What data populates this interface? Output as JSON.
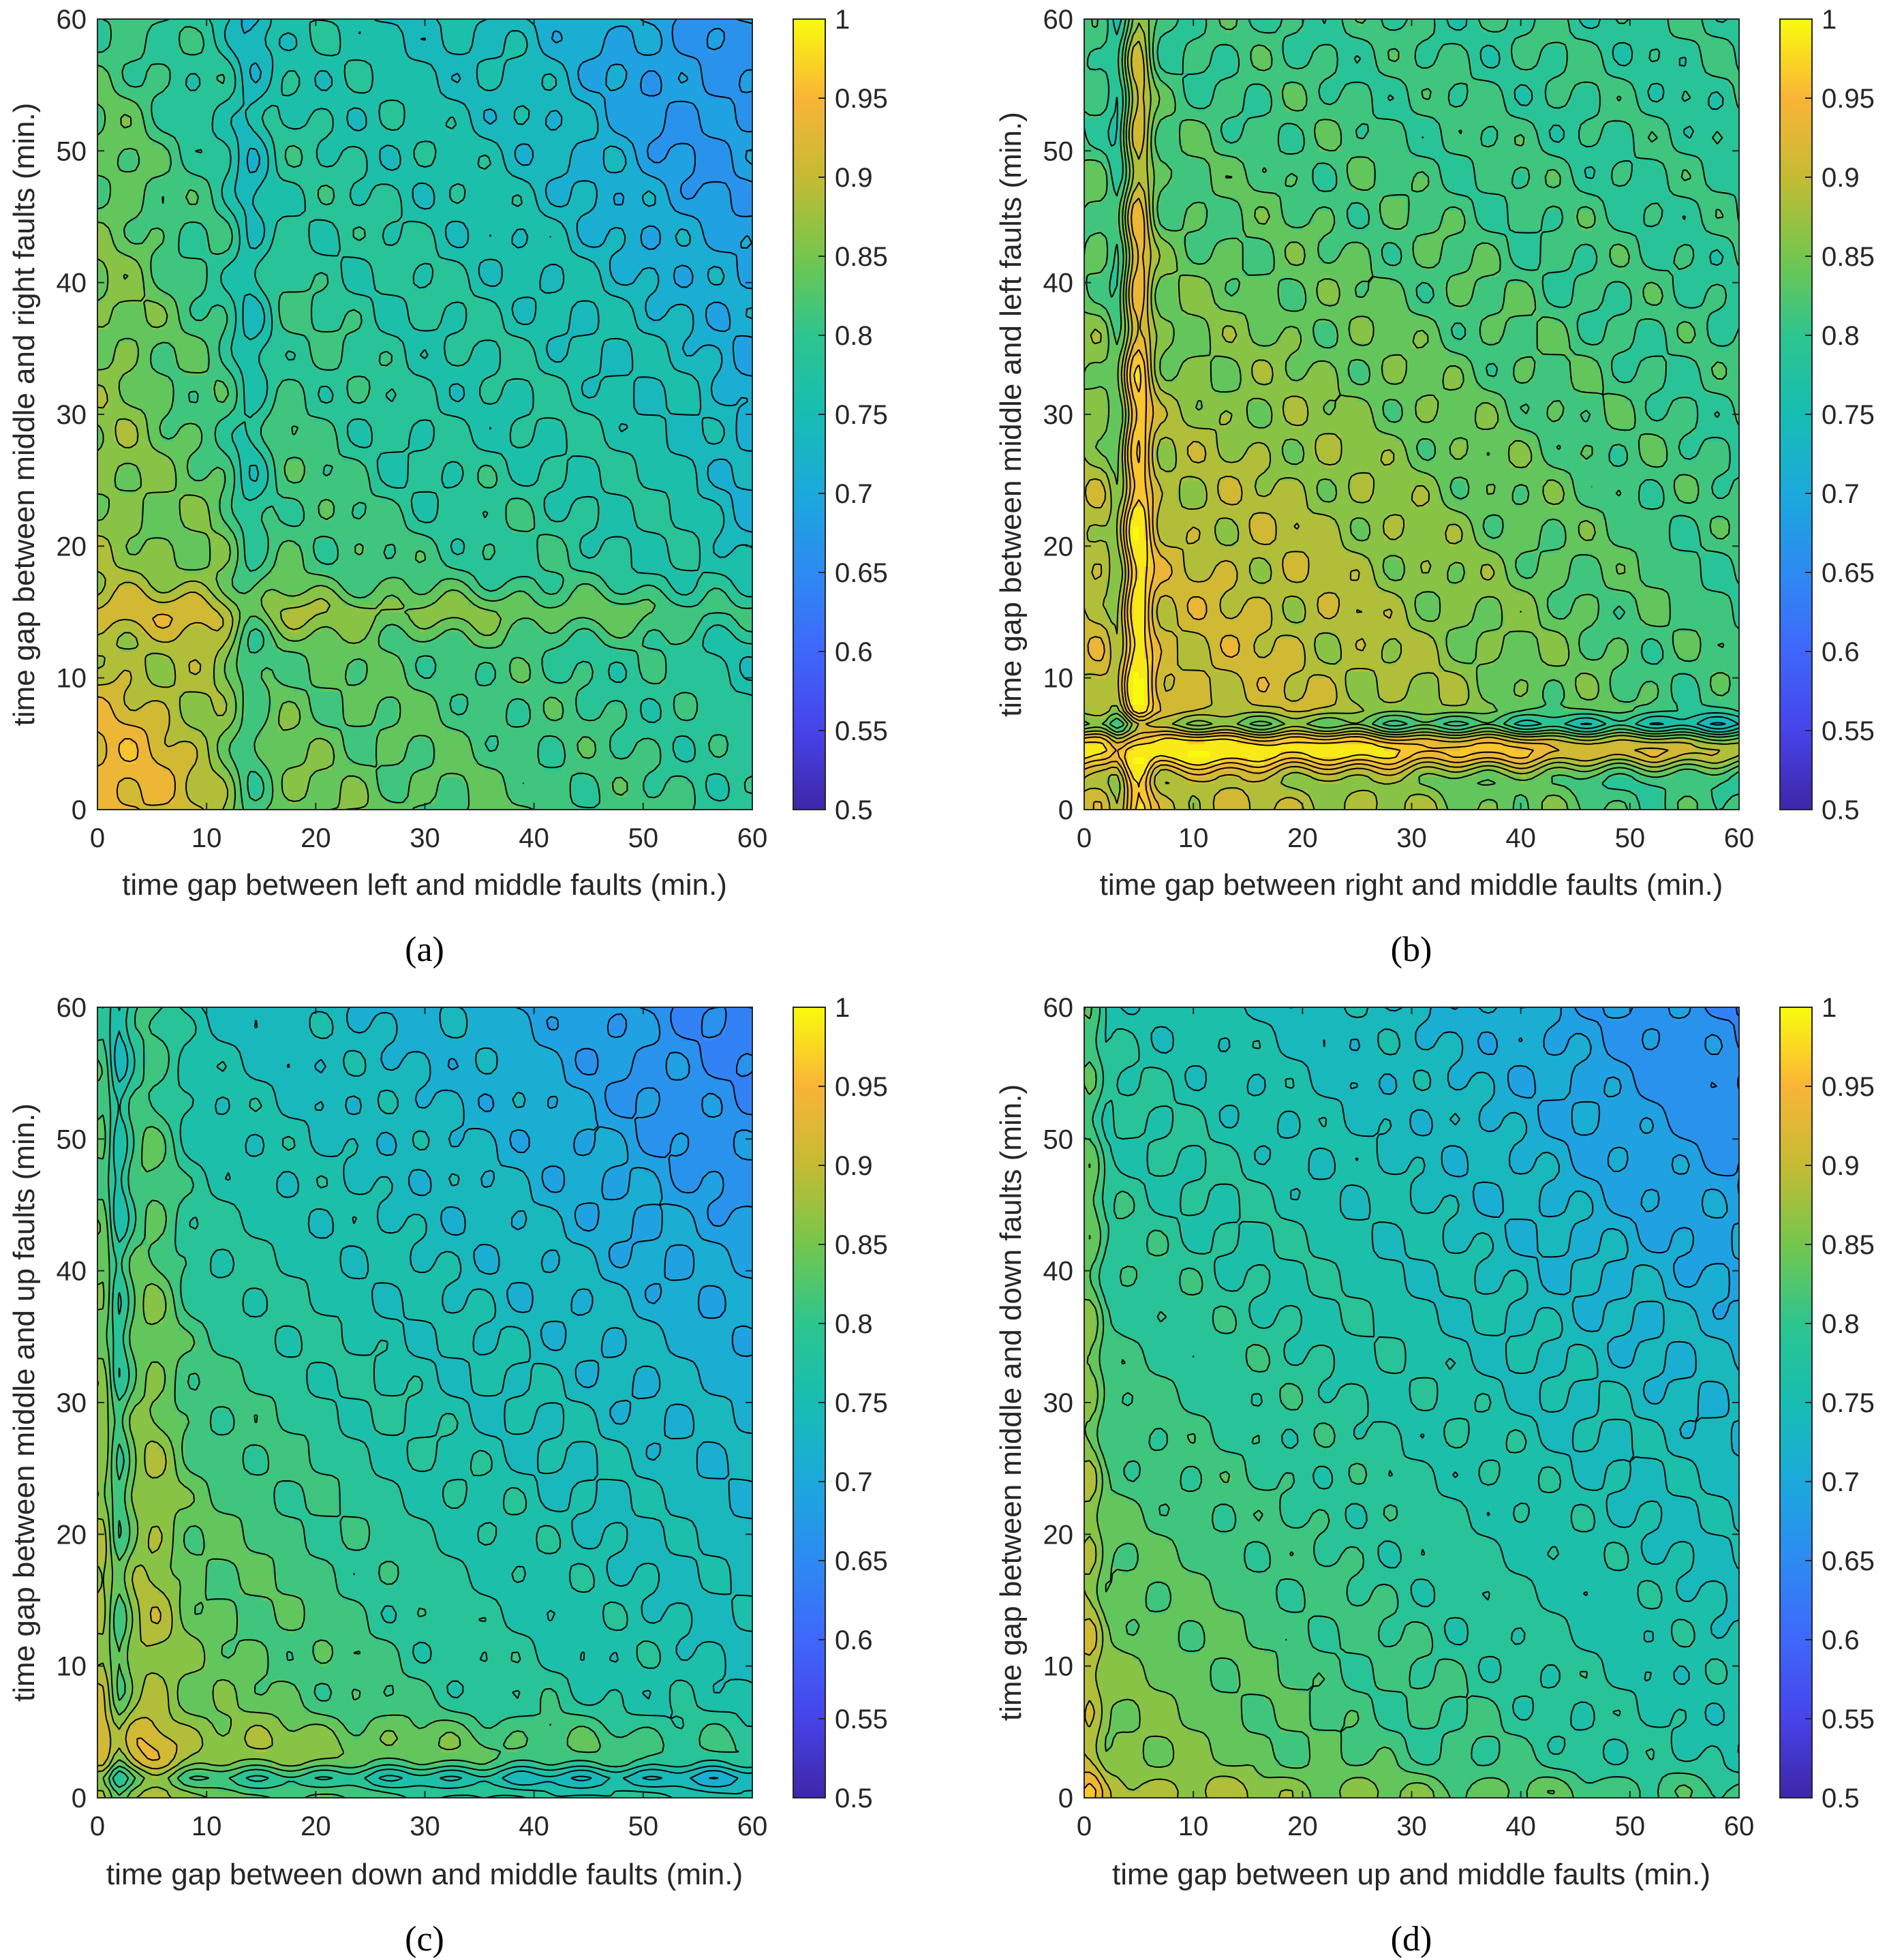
{
  "colors": {
    "colormap": "parula",
    "contour_line": "#000000",
    "axis": "#262626",
    "background": "#ffffff"
  },
  "chart_data": [
    {
      "type": "heatmap",
      "panel": "(a)",
      "xlabel": "time gap between left and middle faults (min.)",
      "ylabel": "time gap between middle and right faults (min.)",
      "xlim": [
        0,
        60
      ],
      "ylim": [
        0,
        60
      ],
      "xticks": [
        0,
        10,
        20,
        30,
        40,
        50,
        60
      ],
      "yticks": [
        0,
        10,
        20,
        30,
        40,
        50,
        60
      ],
      "colorbar": {
        "range": [
          0.5,
          1
        ],
        "ticks": [
          0.5,
          0.55,
          0.6,
          0.65,
          0.7,
          0.75,
          0.8,
          0.85,
          0.9,
          0.95,
          1
        ]
      },
      "contour_step": 0.025,
      "model": {
        "base": 0.872,
        "slope": -0.00135,
        "bumps": [
          {
            "x": 2,
            "y": 2,
            "sx": 6,
            "sy": 6,
            "a": 0.07
          },
          {
            "x": 14,
            "y": 30,
            "sx": 1.3,
            "sy": 70,
            "a": -0.05
          },
          {
            "x": 30,
            "y": 15,
            "sx": 70,
            "sy": 1.3,
            "a": 0.045
          },
          {
            "x": 55,
            "y": 52,
            "sx": 8,
            "sy": 10,
            "a": -0.055
          },
          {
            "x": 60,
            "y": 28,
            "sx": 3,
            "sy": 10,
            "a": -0.035
          },
          {
            "x": 2,
            "y": 40,
            "sx": 3,
            "sy": 20,
            "a": 0.035
          },
          {
            "x": 30,
            "y": 28,
            "sx": 5,
            "sy": 5,
            "a": -0.02
          },
          {
            "x": 10,
            "y": 15,
            "sx": 3,
            "sy": 5,
            "a": 0.03
          }
        ],
        "ripple": 0.018
      }
    },
    {
      "type": "heatmap",
      "panel": "(b)",
      "xlabel": "time gap between right and middle faults (min.)",
      "ylabel": "time gap between middle and left faults (min.)",
      "xlim": [
        0,
        60
      ],
      "ylim": [
        0,
        60
      ],
      "xticks": [
        0,
        10,
        20,
        30,
        40,
        50,
        60
      ],
      "yticks": [
        0,
        10,
        20,
        30,
        40,
        50,
        60
      ],
      "colorbar": {
        "range": [
          0.5,
          1
        ],
        "ticks": [
          0.5,
          0.55,
          0.6,
          0.65,
          0.7,
          0.75,
          0.8,
          0.85,
          0.9,
          0.95,
          1
        ]
      },
      "contour_step": 0.025,
      "model": {
        "base": 0.79,
        "slope": 0,
        "bumps": [
          {
            "x": 8,
            "y": 8,
            "sx": 26,
            "sy": 24,
            "a": 0.12
          },
          {
            "x": 5,
            "y": 35,
            "sx": 0.9,
            "sy": 90,
            "a": 0.1
          },
          {
            "x": 35,
            "y": 4.5,
            "sx": 90,
            "sy": 0.9,
            "a": 0.1
          },
          {
            "x": 35,
            "y": 6.5,
            "sx": 90,
            "sy": 0.5,
            "a": -0.07
          },
          {
            "x": 3,
            "y": 35,
            "sx": 0.6,
            "sy": 90,
            "a": -0.04
          },
          {
            "x": 5,
            "y": 5,
            "sx": 1,
            "sy": 1,
            "a": -0.1
          },
          {
            "x": 35,
            "y": 2,
            "sx": 90,
            "sy": 0.8,
            "a": -0.02
          }
        ],
        "ripple": 0.02
      }
    },
    {
      "type": "heatmap",
      "panel": "(c)",
      "xlabel": "time gap between down and middle faults (min.)",
      "ylabel": "time gap between middle and up faults (min.)",
      "xlim": [
        0,
        60
      ],
      "ylim": [
        0,
        60
      ],
      "xticks": [
        0,
        10,
        20,
        30,
        40,
        50,
        60
      ],
      "yticks": [
        0,
        10,
        20,
        30,
        40,
        50,
        60
      ],
      "colorbar": {
        "range": [
          0.5,
          1
        ],
        "ticks": [
          0.5,
          0.55,
          0.6,
          0.65,
          0.7,
          0.75,
          0.8,
          0.85,
          0.9,
          0.95,
          1
        ]
      },
      "contour_step": 0.025,
      "model": {
        "base": 0.85,
        "slope": -0.00145,
        "bumps": [
          {
            "x": 5,
            "y": 35,
            "sx": 1.8,
            "sy": 60,
            "a": 0.05
          },
          {
            "x": 0.3,
            "y": 35,
            "sx": 0.8,
            "sy": 60,
            "a": 0.05
          },
          {
            "x": 35,
            "y": 4,
            "sx": 60,
            "sy": 1.6,
            "a": 0.04
          },
          {
            "x": 35,
            "y": 1.5,
            "sx": 60,
            "sy": 0.6,
            "a": -0.06
          },
          {
            "x": 2,
            "y": 35,
            "sx": 0.6,
            "sy": 60,
            "a": -0.035
          },
          {
            "x": 58,
            "y": 55,
            "sx": 10,
            "sy": 10,
            "a": -0.035
          },
          {
            "x": 12,
            "y": 20,
            "sx": 8,
            "sy": 14,
            "a": 0.02
          }
        ],
        "ripple": 0.015
      }
    },
    {
      "type": "heatmap",
      "panel": "(d)",
      "xlabel": "time gap between up and middle faults (min.)",
      "ylabel": "time gap between middle and down faults (min.)",
      "xlim": [
        0,
        60
      ],
      "ylim": [
        0,
        60
      ],
      "xticks": [
        0,
        10,
        20,
        30,
        40,
        50,
        60
      ],
      "yticks": [
        0,
        10,
        20,
        30,
        40,
        50,
        60
      ],
      "colorbar": {
        "range": [
          0.5,
          1
        ],
        "ticks": [
          0.5,
          0.55,
          0.6,
          0.65,
          0.7,
          0.75,
          0.8,
          0.85,
          0.9,
          0.95,
          1
        ]
      },
      "contour_step": 0.025,
      "model": {
        "base": 0.852,
        "slope": -0.00135,
        "bumps": [
          {
            "x": 0.4,
            "y": 30,
            "sx": 1.3,
            "sy": 60,
            "a": 0.05
          },
          {
            "x": 30,
            "y": 0.3,
            "sx": 60,
            "sy": 1.2,
            "a": 0.035
          },
          {
            "x": 5,
            "y": 5,
            "sx": 10,
            "sy": 10,
            "a": 0.015
          },
          {
            "x": 58,
            "y": 56,
            "sx": 12,
            "sy": 12,
            "a": -0.04
          },
          {
            "x": 2,
            "y": 35,
            "sx": 0.6,
            "sy": 60,
            "a": -0.02
          }
        ],
        "ripple": 0.015
      }
    }
  ]
}
